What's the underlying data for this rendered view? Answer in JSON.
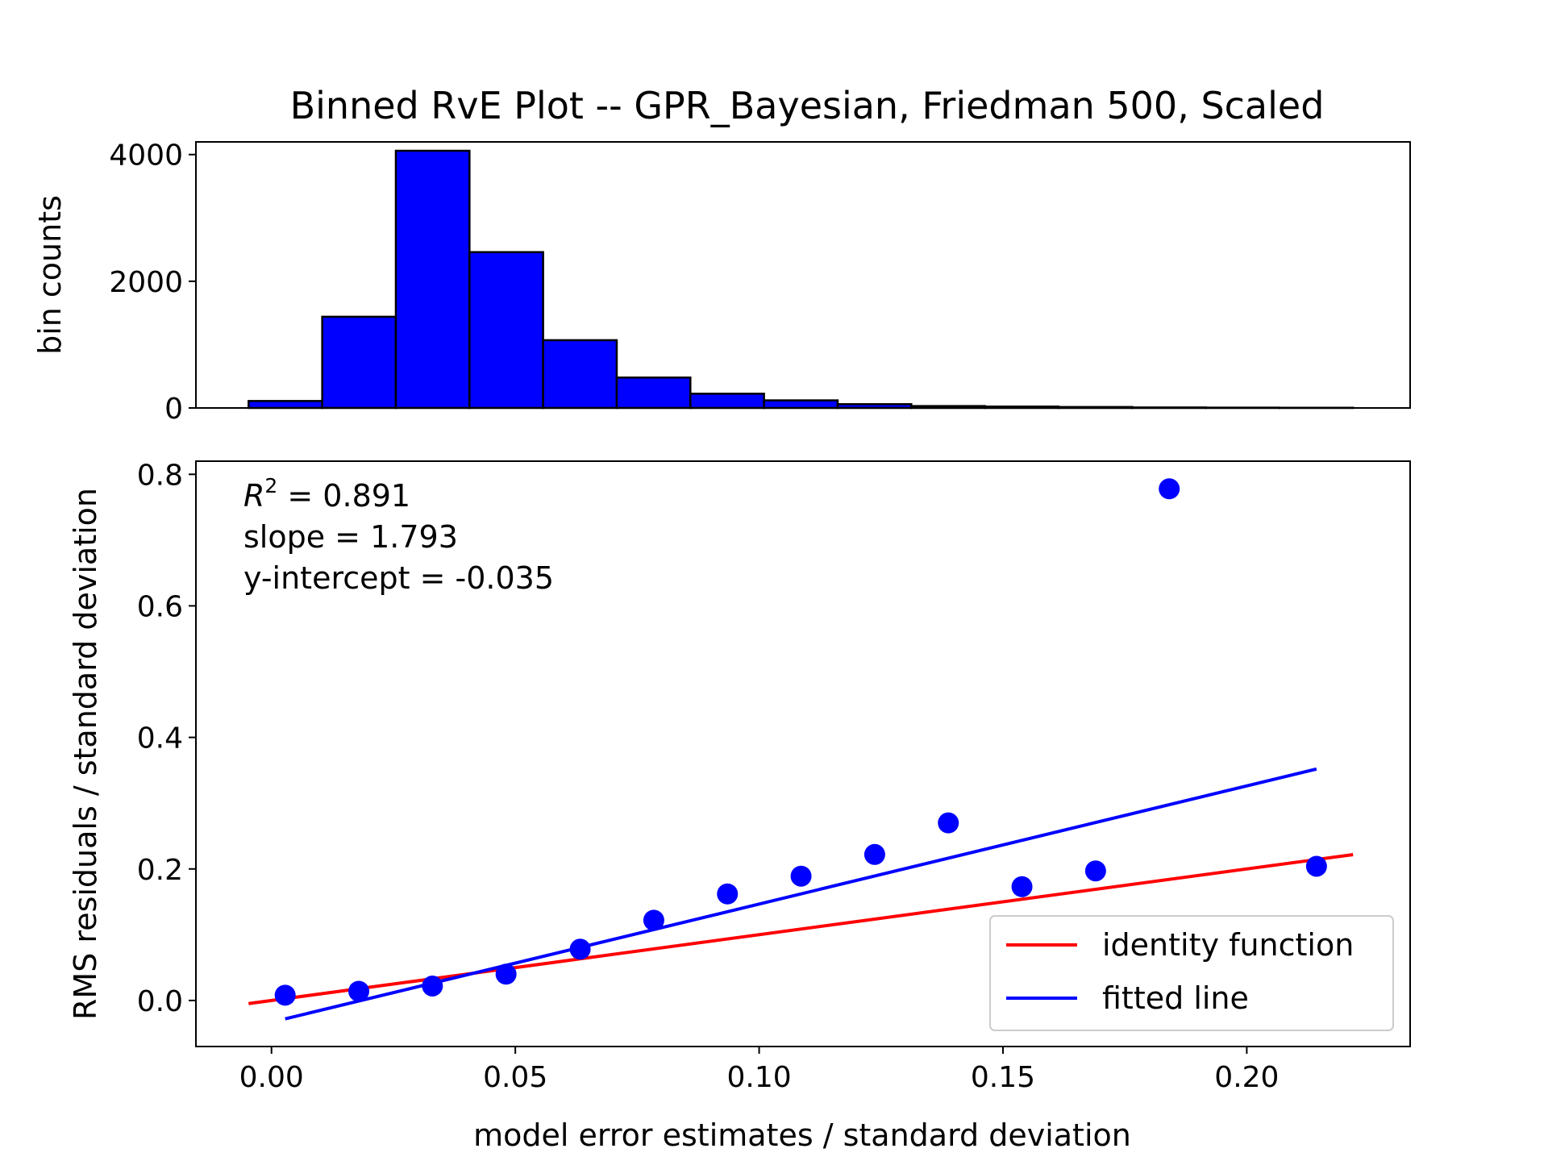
{
  "chart_data": [
    {
      "type": "bar",
      "title": "Binned RvE Plot -- GPR_Bayesian, Friedman 500, Scaled",
      "xlabel": "",
      "ylabel": "bin counts",
      "ylim": [
        0,
        4200
      ],
      "xlim": [
        -0.0155,
        0.2335
      ],
      "yticks": [
        0,
        2000,
        4000
      ],
      "ytick_labels": [
        "0",
        "2000",
        "4000"
      ],
      "bar_color": "#0000ff",
      "bin_edges": [
        -0.0047,
        0.0104,
        0.0255,
        0.0406,
        0.0557,
        0.0708,
        0.0859,
        0.101,
        0.1161,
        0.1312,
        0.1463,
        0.1614,
        0.1765,
        0.1916,
        0.2067,
        0.2218
      ],
      "values": [
        110,
        1440,
        4060,
        2460,
        1070,
        480,
        225,
        120,
        60,
        30,
        22,
        15,
        8,
        5,
        3
      ]
    },
    {
      "type": "scatter",
      "xlabel": "model error estimates / standard deviation",
      "ylabel": "RMS residuals / standard deviation",
      "xlim": [
        -0.0155,
        0.2335
      ],
      "ylim": [
        -0.07,
        0.82
      ],
      "xticks": [
        0.0,
        0.05,
        0.1,
        0.15,
        0.2
      ],
      "xtick_labels": [
        "0.00",
        "0.05",
        "0.10",
        "0.15",
        "0.20"
      ],
      "yticks": [
        0.0,
        0.2,
        0.4,
        0.6,
        0.8
      ],
      "ytick_labels": [
        "0.0",
        "0.2",
        "0.4",
        "0.6",
        "0.8"
      ],
      "points": {
        "color": "#0000ff",
        "x": [
          0.0028,
          0.0179,
          0.033,
          0.0481,
          0.0633,
          0.0784,
          0.0935,
          0.1086,
          0.1237,
          0.1388,
          0.1539,
          0.169,
          0.1841,
          0.2143
        ],
        "y": [
          0.008,
          0.014,
          0.022,
          0.04,
          0.078,
          0.122,
          0.162,
          0.189,
          0.222,
          0.27,
          0.173,
          0.197,
          0.778,
          0.204
        ]
      },
      "series": [
        {
          "name": "identity function",
          "color": "#ff0000",
          "x": [
            -0.0047,
            0.2218
          ],
          "y": [
            -0.0047,
            0.2218
          ]
        },
        {
          "name": "fitted line",
          "color": "#0000ff",
          "x": [
            0.0028,
            0.2143
          ],
          "y": [
            -0.028,
            0.352
          ]
        }
      ],
      "annotations": [
        {
          "prefix": "R",
          "sup": "2",
          "text": " = 0.891"
        },
        {
          "text": "slope = 1.793"
        },
        {
          "text": "y-intercept = -0.035"
        }
      ],
      "legend_position": "lower-right"
    }
  ]
}
